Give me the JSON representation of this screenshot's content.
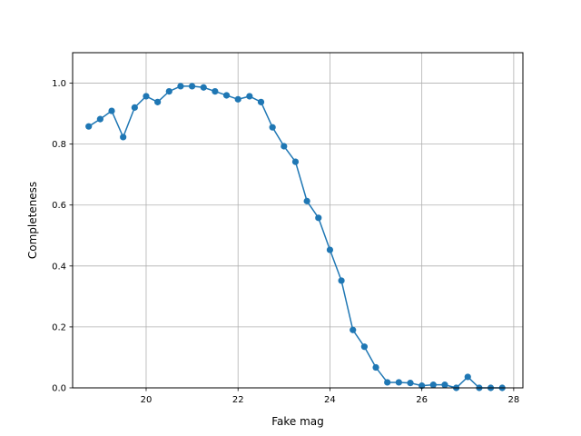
{
  "chart_data": {
    "type": "line",
    "title": "",
    "xlabel": "Fake mag",
    "ylabel": "Completeness",
    "xlim": [
      18.4,
      28.2
    ],
    "ylim": [
      0.0,
      1.1
    ],
    "grid": true,
    "x_ticks": [
      20,
      22,
      24,
      26,
      28
    ],
    "y_ticks": [
      0.0,
      0.2,
      0.4,
      0.6,
      0.8,
      1.0
    ],
    "x_tick_labels": [
      "20",
      "22",
      "24",
      "26",
      "28"
    ],
    "y_tick_labels": [
      "0.0",
      "0.2",
      "0.4",
      "0.6",
      "0.8",
      "1.0"
    ],
    "series": [
      {
        "color": "#1f77b4",
        "marker": "circle",
        "x": [
          18.75,
          19.0,
          19.25,
          19.5,
          19.75,
          20.0,
          20.25,
          20.5,
          20.75,
          21.0,
          21.25,
          21.5,
          21.75,
          22.0,
          22.25,
          22.5,
          22.75,
          23.0,
          23.25,
          23.5,
          23.75,
          24.0,
          24.25,
          24.5,
          24.75,
          25.0,
          25.25,
          25.5,
          25.75,
          26.0,
          26.25,
          26.5,
          26.75,
          27.0,
          27.25,
          27.5,
          27.75
        ],
        "y": [
          0.858,
          0.882,
          0.909,
          0.823,
          0.92,
          0.957,
          0.938,
          0.973,
          0.99,
          0.99,
          0.986,
          0.973,
          0.96,
          0.947,
          0.957,
          0.938,
          0.855,
          0.793,
          0.742,
          0.613,
          0.558,
          0.453,
          0.352,
          0.19,
          0.135,
          0.067,
          0.018,
          0.018,
          0.016,
          0.007,
          0.01,
          0.01,
          0.0,
          0.036,
          0.0,
          0.0,
          0.0
        ]
      }
    ]
  }
}
